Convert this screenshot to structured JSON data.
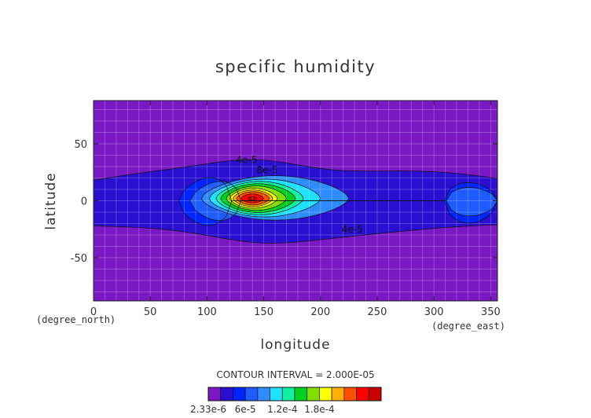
{
  "chart_data": {
    "type": "contour",
    "title": "specific humidity",
    "xlabel": "longitude",
    "ylabel": "latitude",
    "x_unit_label": "(degree_east)",
    "y_unit_label": "(degree_north)",
    "xlim": [
      0,
      356
    ],
    "ylim": [
      -88,
      88
    ],
    "x_ticks": [
      0,
      50,
      100,
      150,
      200,
      250,
      300,
      350
    ],
    "y_ticks": [
      -50,
      0,
      50
    ],
    "grid": true,
    "contour_interval_label": "CONTOUR INTERVAL = 2.000E-05",
    "contour_line_labels": [
      {
        "text": "4e-5",
        "x": 135,
        "y": 33
      },
      {
        "text": "8e-5",
        "x": 153,
        "y": 24
      },
      {
        "text": "4e-5",
        "x": 228,
        "y": -28
      }
    ],
    "color_levels": [
      "#7a18c4",
      "#2a0fd0",
      "#0024ff",
      "#1f5cff",
      "#2f8cff",
      "#1fe0ff",
      "#10f0a0",
      "#00d020",
      "#80e000",
      "#ffff00",
      "#ffb000",
      "#ff5000",
      "#ff0000",
      "#c80000"
    ],
    "colorbar_labels": [
      "2.33e-6",
      "6e-5",
      "1.2e-4",
      "1.8e-4"
    ],
    "colorbar_label_level_positions": [
      0,
      3,
      6,
      9
    ],
    "fields": [
      {
        "level": 1,
        "lat_half": 28,
        "center": [
          180,
          0
        ],
        "lon_range": [
          0,
          356
        ],
        "edge_lat": [
          18,
          -22
        ],
        "wavy": true
      },
      {
        "level": 2,
        "lat_half": 22,
        "center": [
          210,
          0
        ],
        "lon_range": [
          75,
          356
        ],
        "edge_lat": [
          14,
          -18
        ]
      },
      {
        "level": 3,
        "lat_half": 18,
        "center": [
          230,
          0
        ],
        "lon_range": [
          85,
          356
        ],
        "edge_lat": [
          10,
          -12
        ]
      },
      {
        "level": 4,
        "lat_half": 20,
        "center": [
          150,
          2
        ],
        "lon_range": [
          95,
          225
        ]
      },
      {
        "level": 5,
        "lat_half": 17,
        "center": [
          148,
          2
        ],
        "lon_range": [
          102,
          200
        ]
      },
      {
        "level": 6,
        "lat_half": 15,
        "center": [
          145,
          2
        ],
        "lon_range": [
          108,
          185
        ]
      },
      {
        "level": 7,
        "lat_half": 13,
        "center": [
          143,
          2
        ],
        "lon_range": [
          112,
          178
        ]
      },
      {
        "level": 8,
        "lat_half": 11,
        "center": [
          142,
          2
        ],
        "lon_range": [
          117,
          170
        ]
      },
      {
        "level": 9,
        "lat_half": 9,
        "center": [
          140,
          2
        ],
        "lon_range": [
          120,
          162
        ]
      },
      {
        "level": 10,
        "lat_half": 7.5,
        "center": [
          140,
          2
        ],
        "lon_range": [
          123,
          158
        ]
      },
      {
        "level": 11,
        "lat_half": 6,
        "center": [
          140,
          2
        ],
        "lon_range": [
          126,
          155
        ]
      },
      {
        "level": 12,
        "lat_half": 4,
        "center": [
          140,
          2
        ],
        "lon_range": [
          130,
          150
        ]
      },
      {
        "level": 13,
        "lat_half": 1.5,
        "center": [
          140,
          2
        ],
        "lon_range": [
          136,
          144
        ]
      }
    ]
  }
}
